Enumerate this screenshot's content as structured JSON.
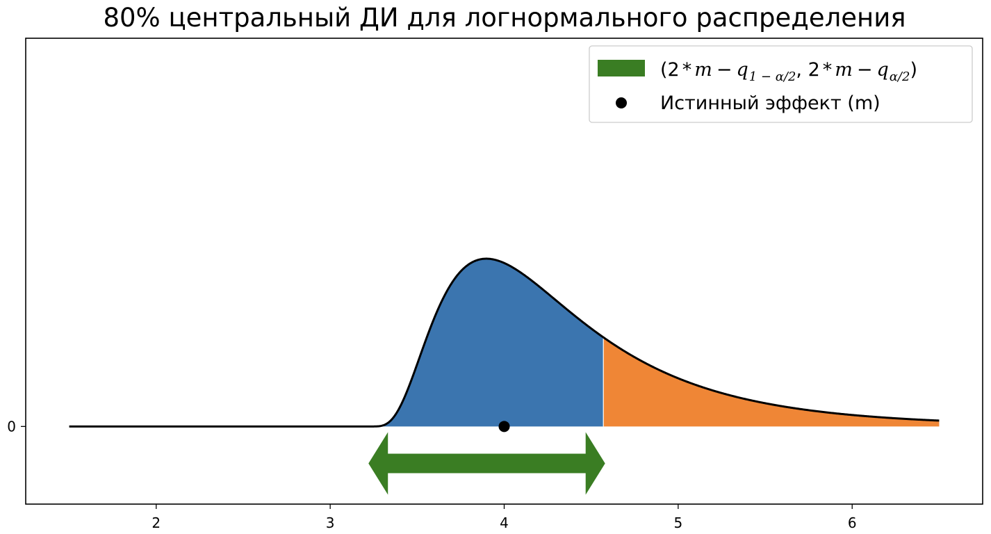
{
  "chart_data": {
    "type": "area",
    "title": "80% центральный ДИ для логнормального распределения",
    "xlabel": "",
    "ylabel": "",
    "xlim": [
      1.25,
      6.75
    ],
    "ylim": [
      -1.26,
      6.3
    ],
    "x_ticks": [
      2,
      3,
      4,
      5,
      6
    ],
    "x_tick_labels": [
      "2",
      "3",
      "4",
      "5",
      "6"
    ],
    "y_ticks": [
      0
    ],
    "y_tick_labels": [
      "0"
    ],
    "grid": false,
    "distribution": {
      "shift": 3.2,
      "sigma": 0.6,
      "mu": 0.0,
      "density_scale": 3.42,
      "x_start": 1.5,
      "x_end": 6.5,
      "curve_color": "#000000"
    },
    "series": [
      {
        "region": "central",
        "x_range": [
          3.2,
          4.57
        ],
        "color": "#3b75af"
      },
      {
        "region": "upper_tail",
        "x_range": [
          4.57,
          6.5
        ],
        "color": "#ef8636"
      }
    ],
    "true_effect": {
      "x": 4.0,
      "y": 0.0,
      "color": "#000000"
    },
    "interval_arrow": {
      "x_range": [
        3.22,
        4.58
      ],
      "y": -0.6,
      "color": "#3a7d23"
    },
    "legend": {
      "location": "upper right",
      "entries": [
        {
          "kind": "patch",
          "color": "#3a7d23",
          "label": "(2 * m − q1 − α/2, 2 * m − qα/2)"
        },
        {
          "kind": "marker",
          "color": "#000000",
          "label": "Истинный эффект (m)"
        }
      ]
    }
  }
}
